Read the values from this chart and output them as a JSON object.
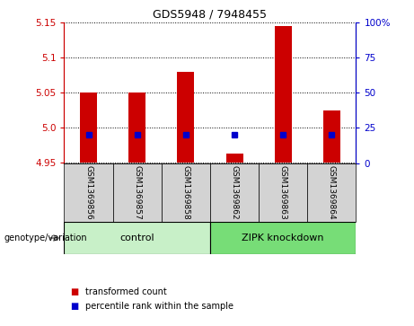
{
  "title": "GDS5948 / 7948455",
  "samples": [
    "GSM1369856",
    "GSM1369857",
    "GSM1369858",
    "GSM1369862",
    "GSM1369863",
    "GSM1369864"
  ],
  "red_values": [
    5.05,
    5.05,
    5.08,
    4.963,
    5.145,
    5.025
  ],
  "blue_values_pct": [
    20,
    20,
    20,
    20,
    20,
    20
  ],
  "baseline": 4.95,
  "ylim_left": [
    4.95,
    5.15
  ],
  "yticks_left": [
    4.95,
    5.0,
    5.05,
    5.1,
    5.15
  ],
  "ylim_right": [
    0,
    100
  ],
  "yticks_right": [
    0,
    25,
    50,
    75,
    100
  ],
  "ytick_right_labels": [
    "0",
    "25",
    "50",
    "75",
    "100%"
  ],
  "left_axis_color": "#cc0000",
  "right_axis_color": "#0000cc",
  "bar_color": "#cc0000",
  "dot_color": "#0000cc",
  "grid_color": "#000000",
  "control_bg": "#c8f0c8",
  "knockdown_bg": "#77dd77",
  "sample_bg": "#d3d3d3",
  "bar_width": 0.35,
  "group_labels": [
    "control",
    "ZIPK knockdown"
  ],
  "legend_items": [
    "transformed count",
    "percentile rank within the sample"
  ],
  "legend_colors": [
    "#cc0000",
    "#0000cc"
  ],
  "genotype_label": "genotype/variation"
}
